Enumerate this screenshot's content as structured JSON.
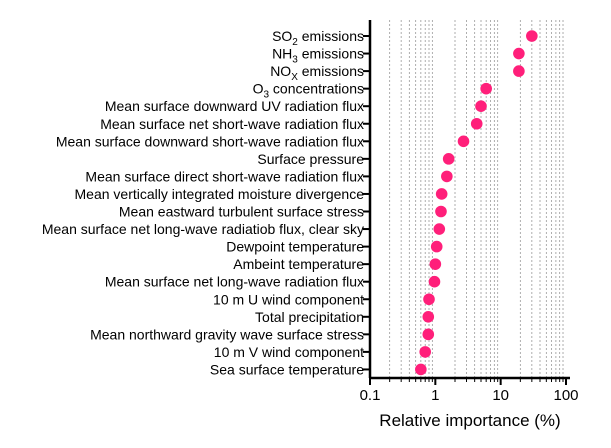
{
  "chart_data": {
    "type": "scatter",
    "orientation": "horizontal",
    "xscale": "log",
    "xlim": [
      0.1,
      100
    ],
    "xticks": [
      "0.1",
      "1",
      "10",
      "100"
    ],
    "xlabel": "Relative importance (%)",
    "ylabel": "",
    "title": "",
    "grid": "vertical minor dashed",
    "marker_color": "#ff1f7a",
    "points": [
      {
        "label": "SO2 emissions",
        "base": "SO",
        "subscript": "2",
        "rest": " emissions",
        "value": 30
      },
      {
        "label": "NH3 emissions",
        "base": "NH",
        "subscript": "3",
        "rest": " emissions",
        "value": 19
      },
      {
        "label": "NOX emissions",
        "base": "NO",
        "subscript": "X",
        "rest": " emissions",
        "value": 19
      },
      {
        "label": "O3 concentrations",
        "base": "O",
        "subscript": "3",
        "rest": " concentrations",
        "value": 6
      },
      {
        "label": "Mean surface downward UV radiation flux",
        "value": 5.0
      },
      {
        "label": "Mean surface net short-wave radiation flux",
        "value": 4.3
      },
      {
        "label": "Mean surface downward short-wave radiation flux",
        "value": 2.7
      },
      {
        "label": "Surface pressure",
        "value": 1.6
      },
      {
        "label": "Mean surface direct short-wave radiation flux",
        "value": 1.5
      },
      {
        "label": "Mean vertically integrated moisture divergence",
        "value": 1.25
      },
      {
        "label": "Mean eastward turbulent surface stress",
        "value": 1.22
      },
      {
        "label": "Mean surface net long-wave radiatiob flux, clear sky",
        "value": 1.15
      },
      {
        "label": "Dewpoint temperature",
        "value": 1.05
      },
      {
        "label": "Ambeint temperature",
        "value": 1.0
      },
      {
        "label": "Mean surface net long-wave radiation flux",
        "value": 0.97
      },
      {
        "label": "10 m U wind component",
        "value": 0.8
      },
      {
        "label": "Total precipitation",
        "value": 0.78
      },
      {
        "label": "Mean northward gravity wave surface stress",
        "value": 0.78
      },
      {
        "label": "10 m V wind component",
        "value": 0.7
      },
      {
        "label": "Sea surface temperature",
        "value": 0.6
      }
    ]
  }
}
